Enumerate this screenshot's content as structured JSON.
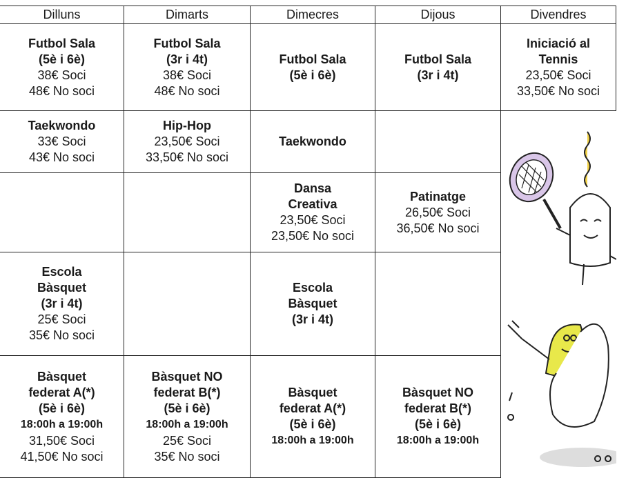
{
  "table": {
    "header": [
      "Dilluns",
      "Dimarts",
      "Dimecres",
      "Dijous",
      "Divendres"
    ],
    "rows": [
      [
        {
          "bold": [
            "Futbol Sala",
            "(5è i 6è)"
          ],
          "plain": [
            "38€ Soci",
            "48€ No soci"
          ]
        },
        {
          "bold": [
            "Futbol Sala",
            "(3r i 4t)"
          ],
          "plain": [
            "38€ Soci",
            "48€ No soci"
          ]
        },
        {
          "bold": [
            "Futbol Sala",
            "(5è i 6è)"
          ]
        },
        {
          "bold": [
            "Futbol Sala",
            "(3r i 4t)"
          ]
        },
        {
          "bold": [
            "Iniciació al",
            "Tennis"
          ],
          "plain": [
            "23,50€ Soci",
            "33,50€ No soci"
          ]
        }
      ],
      [
        {
          "bold": [
            "Taekwondo"
          ],
          "plain": [
            "33€ Soci",
            "43€ No soci"
          ]
        },
        {
          "bold": [
            "Hip-Hop"
          ],
          "plain": [
            "23,50€ Soci",
            "33,50€ No soci"
          ]
        },
        {
          "bold": [
            "Taekwondo"
          ]
        },
        null
      ],
      [
        null,
        null,
        {
          "bold": [
            "Dansa",
            "Creativa"
          ],
          "plain": [
            "23,50€ Soci",
            "23,50€ No soci"
          ]
        },
        {
          "bold": [
            "Patinatge"
          ],
          "plain": [
            "26,50€ Soci",
            "36,50€ No soci"
          ]
        }
      ],
      [
        {
          "bold": [
            "Escola",
            "Bàsquet",
            "(3r i 4t)"
          ],
          "plain": [
            "25€ Soci",
            "35€ No soci"
          ]
        },
        null,
        {
          "bold": [
            "Escola",
            "Bàsquet",
            "(3r i 4t)"
          ]
        },
        null
      ],
      [
        {
          "bold": [
            "Bàsquet",
            "federat A(*)",
            "(5è i 6è)"
          ],
          "time": [
            "18:00h a 19:00h"
          ],
          "plain": [
            "31,50€ Soci",
            "41,50€ No soci"
          ]
        },
        {
          "bold": [
            "Bàsquet NO",
            "federat B(*)",
            "(5è i 6è)"
          ],
          "time": [
            "18:00h a 19:00h"
          ],
          "plain": [
            "25€ Soci",
            "35€ No soci"
          ]
        },
        {
          "bold": [
            "Bàsquet",
            "federat A(*)",
            "(5è i 6è)"
          ],
          "time": [
            "18:00h a 19:00h"
          ]
        },
        {
          "bold": [
            "Bàsquet NO",
            "federat B(*)",
            "(5è i 6è)"
          ],
          "time": [
            "18:00h a 19:00h"
          ]
        }
      ]
    ]
  }
}
